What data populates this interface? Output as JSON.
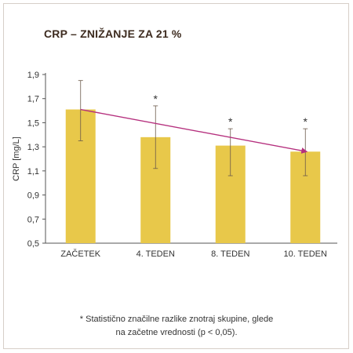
{
  "chart_data": {
    "type": "bar",
    "title": "CRP – ZNIŽANJE ZA 21 %",
    "ylabel": "CRP [mg/L]",
    "xlabel": "",
    "ylim": [
      0.5,
      1.9
    ],
    "yticks": [
      "1,9",
      "1,7",
      "1,5",
      "1,3",
      "1,1",
      "0,9",
      "0,7",
      "0,5"
    ],
    "ytick_values": [
      1.9,
      1.7,
      1.5,
      1.3,
      1.1,
      0.9,
      0.7,
      0.5
    ],
    "categories": [
      "ZAČETEK",
      "4. TEDEN",
      "8. TEDEN",
      "10. TEDEN"
    ],
    "values": [
      1.61,
      1.38,
      1.31,
      1.26
    ],
    "error_low": [
      1.35,
      1.12,
      1.06,
      1.06
    ],
    "error_high": [
      1.85,
      1.64,
      1.45,
      1.45
    ],
    "significance": [
      "",
      "*",
      "*",
      "*"
    ],
    "trend_line": {
      "from": 1.61,
      "to": 1.26
    },
    "bar_color": "#e8c84a",
    "trend_color": "#b5307e",
    "grid": false
  },
  "footnote": {
    "line1": "* Statistično značilne razlike znotraj skupine, glede",
    "line2": "na začetne vrednosti (p < 0,05)."
  }
}
